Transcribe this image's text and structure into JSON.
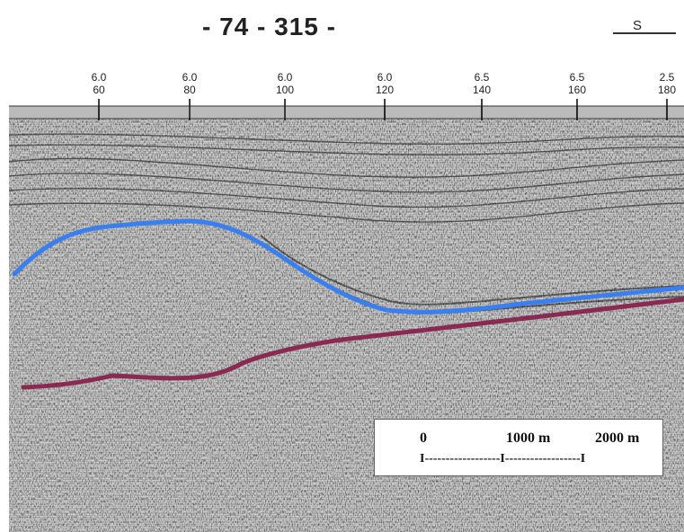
{
  "header": {
    "title": "- 74 - 315 -",
    "direction_label": "S"
  },
  "axis": {
    "ticks": [
      {
        "top": "6.0",
        "bottom": "60"
      },
      {
        "top": "6.0",
        "bottom": "80"
      },
      {
        "top": "6.0",
        "bottom": "100"
      },
      {
        "top": "6.0",
        "bottom": "120"
      },
      {
        "top": "6.5",
        "bottom": "140"
      },
      {
        "top": "6.5",
        "bottom": "160"
      },
      {
        "top": "2.5",
        "bottom": "180"
      }
    ]
  },
  "horizons": {
    "upper_color": "#3a7ff0",
    "lower_color": "#8a2a52"
  },
  "scale_bar": {
    "label_0": "0",
    "label_1000": "1000 m",
    "label_2000": "2000 m",
    "bar_text": "I------------------I------------------I"
  }
}
